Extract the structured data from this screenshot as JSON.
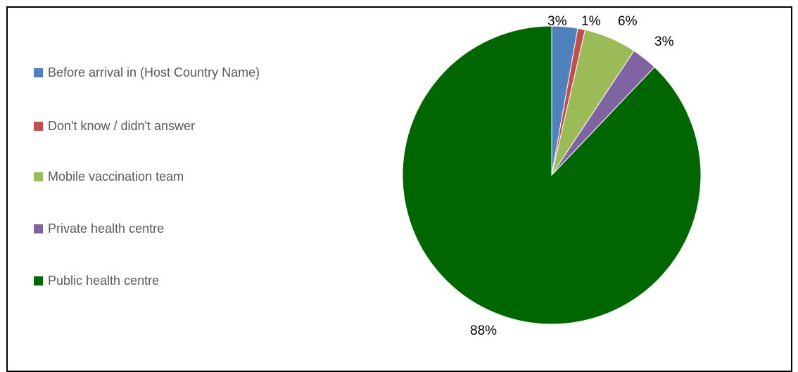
{
  "chart_data": {
    "type": "pie",
    "categories": [
      "Before arrival in (Host Country Name)",
      "Don't know / didn't answer",
      "Mobile vaccination team",
      "Private health centre",
      "Public health centre"
    ],
    "values": [
      2.8,
      0.8,
      5.7,
      2.8,
      87.9
    ],
    "value_labels": [
      "3%",
      "1%",
      "6%",
      "3%",
      "88%"
    ],
    "colors": [
      "#4F81BD",
      "#C0504D",
      "#9BBB59",
      "#8064A2",
      "#006600"
    ],
    "start_angle_deg": 0,
    "direction": "clockwise",
    "legend_position": "left"
  }
}
